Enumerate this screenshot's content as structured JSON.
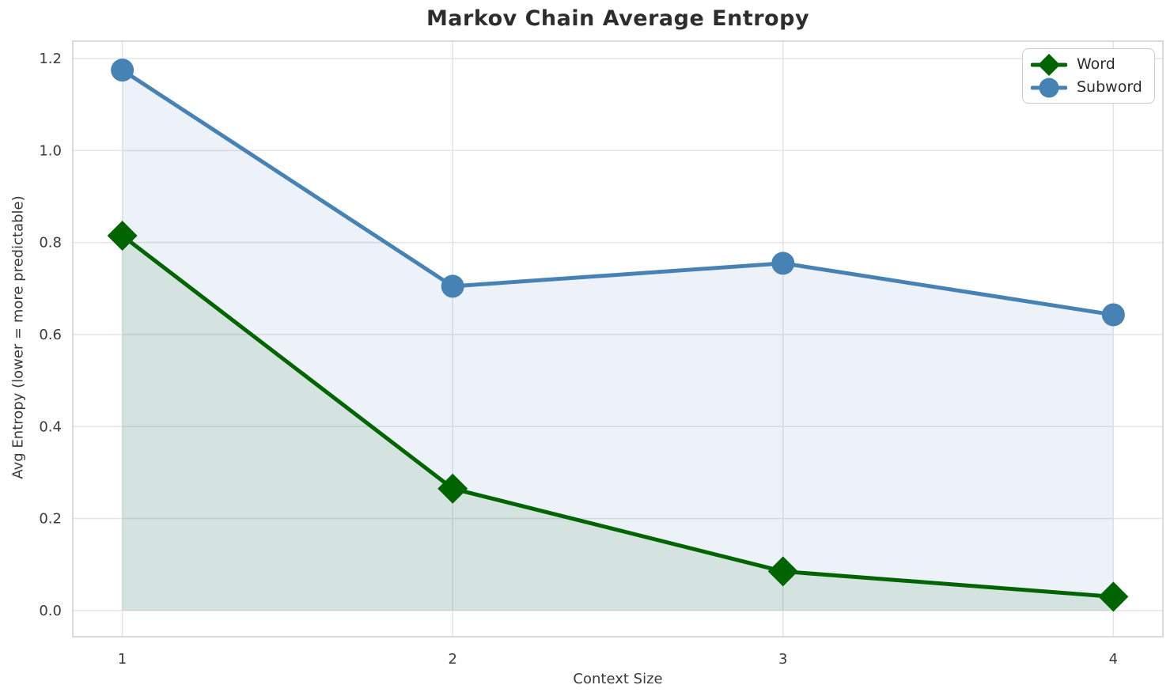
{
  "chart_data": {
    "type": "line",
    "title": "Markov Chain Average Entropy",
    "xlabel": "Context Size",
    "ylabel": "Avg Entropy (lower = more predictable)",
    "x": [
      1,
      2,
      3,
      4
    ],
    "series": [
      {
        "name": "Word",
        "values": [
          0.815,
          0.265,
          0.085,
          0.03
        ],
        "color": "#006400",
        "marker": "diamond",
        "fill_to_zero": true,
        "fill_opacity": 0.1
      },
      {
        "name": "Subword",
        "values": [
          1.175,
          0.705,
          0.755,
          0.643
        ],
        "color": "#4682b4",
        "marker": "circle",
        "fill_to_zero": true,
        "fill_opacity": 0.1
      }
    ],
    "xticks": [
      1,
      2,
      3,
      4
    ],
    "xticklabels": [
      "1",
      "2",
      "3",
      "4"
    ],
    "yticks": [
      0.0,
      0.2,
      0.4,
      0.6,
      0.8,
      1.0,
      1.2
    ],
    "yticklabels": [
      "0.0",
      "0.2",
      "0.4",
      "0.6",
      "0.8",
      "1.0",
      "1.2"
    ],
    "xlim": [
      0.85,
      4.15
    ],
    "ylim": [
      -0.057,
      1.238
    ],
    "grid": true,
    "legend_position": "upper right",
    "grid_color": "#e4e4e4",
    "spine_color": "#d2d2d2",
    "tick_label_color": "#3a3a3a"
  }
}
